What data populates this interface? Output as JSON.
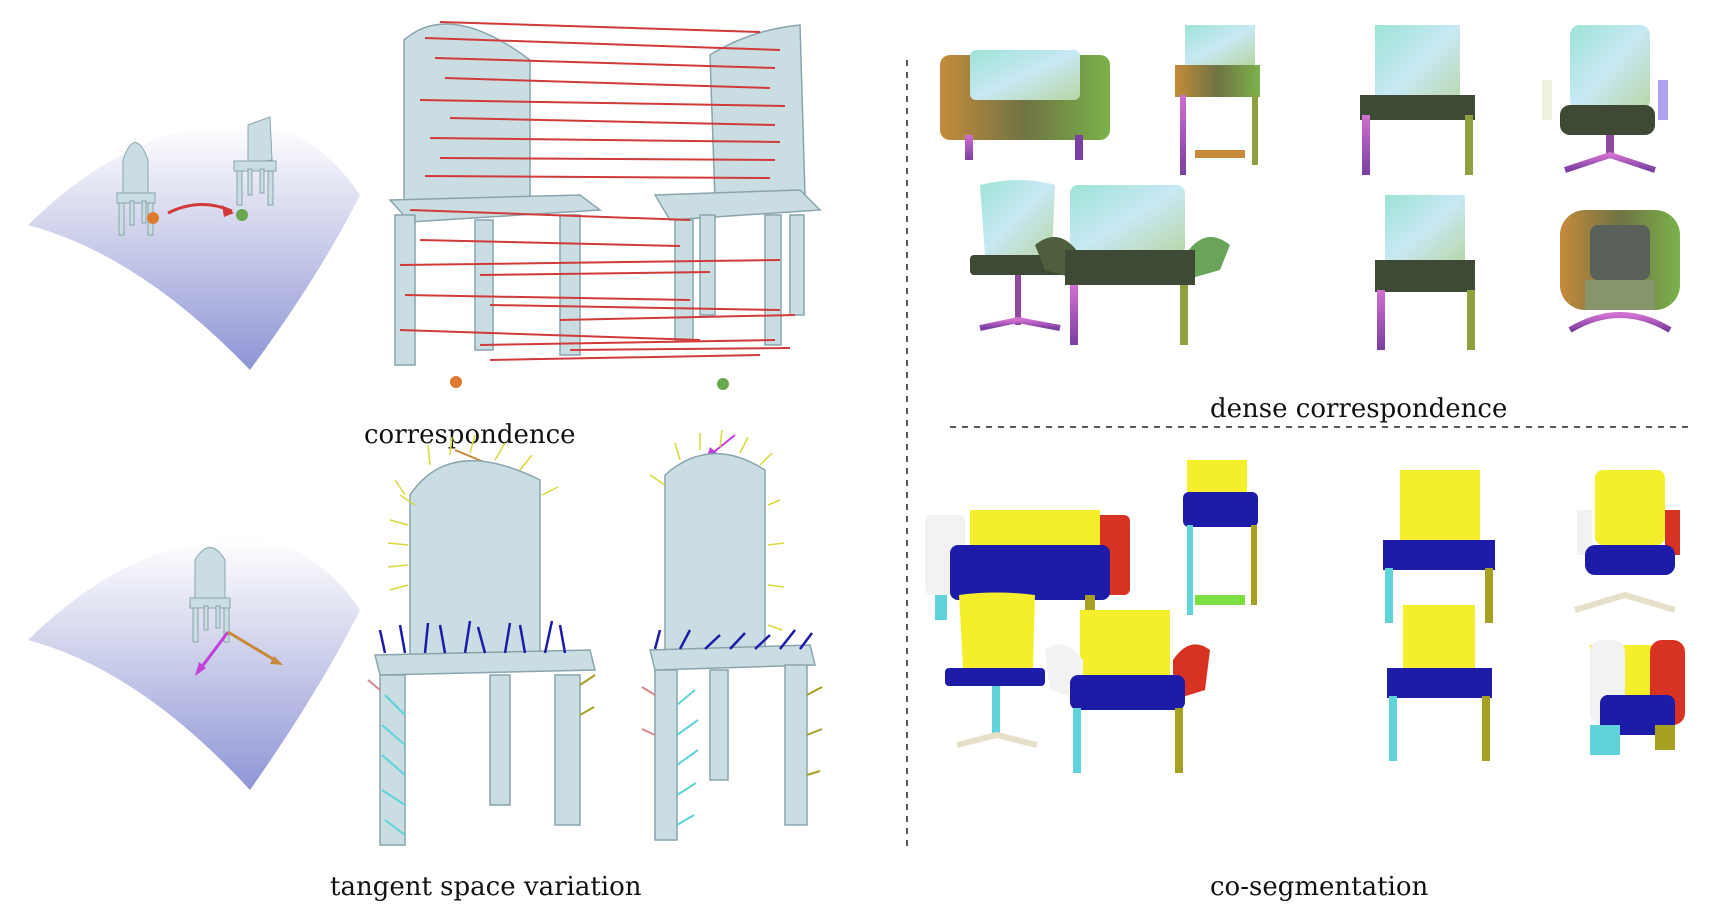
{
  "captions": {
    "correspondence": "correspondence",
    "tangent": "tangent space variation",
    "dense": "dense correspondence",
    "coseg": "co-segmentation"
  },
  "colors": {
    "chair": "#c9dde3",
    "chair_dark": "#9fb9c1",
    "manifold_top": "#ffffff",
    "manifold_bottom": "#8f95d6",
    "corr_line": "#d23a3a",
    "point_orange": "#dd7a2e",
    "point_green": "#6aa84f",
    "arrow_orange": "#c8893a",
    "arrow_magenta": "#c23fd8",
    "seg_yellow": "#f4ef2a",
    "seg_blue": "#1c1ca8",
    "seg_red": "#d83222",
    "seg_cyan": "#5ed3d9",
    "seg_olive": "#a6a023",
    "seg_white": "#f2f2f2",
    "seg_green": "#7de042",
    "seg_pink": "#d8878c"
  },
  "icons": [
    "chair-on-manifold",
    "correspondence-arrow",
    "tangent-vectors",
    "dashed-divider"
  ]
}
